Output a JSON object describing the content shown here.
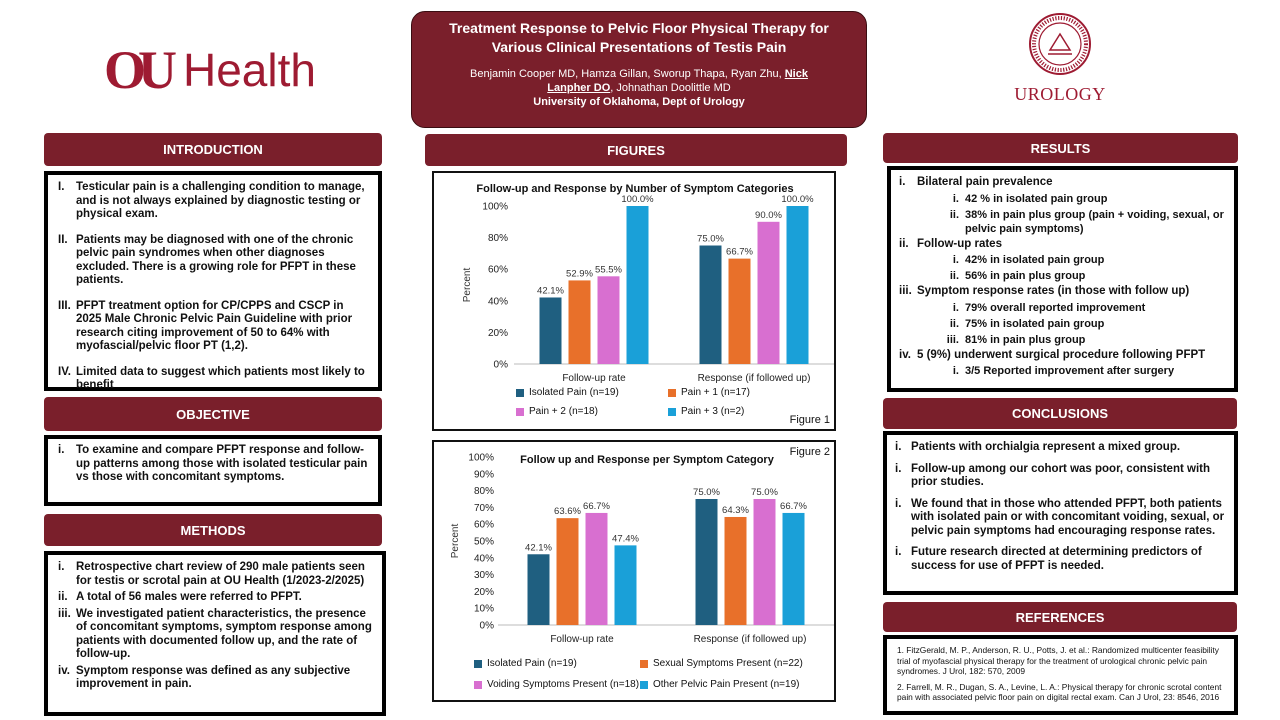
{
  "logo_left": {
    "monogram": "OU",
    "text": "Health"
  },
  "logo_right": {
    "seal_text": "THE UNIVERSITY OF OKLAHOMA · 1890",
    "text": "UROLOGY"
  },
  "title": {
    "line1": "Treatment Response to Pelvic Floor Physical Therapy for",
    "line2": "Various Clinical Presentations of Testis Pain",
    "authors_a": "Benjamin Cooper MD, Hamza Gillan, Sworup Thapa, Ryan Zhu, ",
    "authors_u1": "Nick",
    "authors_u2": "Lanpher DO",
    "authors_b": ", Johnathan Doolittle MD",
    "affiliation": "University of Oklahoma, Dept of Urology"
  },
  "sections": {
    "introduction": "INTRODUCTION",
    "objective": "OBJECTIVE",
    "methods": "METHODS",
    "figures": "FIGURES",
    "results": "RESULTS",
    "conclusions": "CONCLUSIONS",
    "references": "REFERENCES"
  },
  "introduction": [
    {
      "n": "I.",
      "text": "Testicular pain is a challenging condition to manage, and is not always explained by diagnostic testing or physical exam."
    },
    {
      "n": "II.",
      "text": "Patients may be diagnosed with one of the chronic pelvic pain syndromes when other diagnoses excluded. There is a growing role for PFPT in these patients."
    },
    {
      "n": "III.",
      "text": "PFPT treatment option for CP/CPPS and CSCP in 2025 Male Chronic Pelvic Pain Guideline with prior research citing improvement of 50 to 64% with myofascial/pelvic floor PT (1,2)."
    },
    {
      "n": "IV.",
      "text": "Limited data to suggest which patients most likely to benefit"
    }
  ],
  "objective": [
    {
      "n": "i.",
      "text": "To examine and compare PFPT response and follow-up patterns among those with isolated testicular pain vs those with concomitant symptoms."
    }
  ],
  "methods": [
    {
      "n": "i.",
      "text": "Retrospective chart review of 290 male patients seen for testis or scrotal pain at OU Health (1/2023-2/2025)"
    },
    {
      "n": "ii.",
      "text": "A total of 56 males were referred to PFPT."
    },
    {
      "n": "iii.",
      "text": "We investigated patient characteristics, the presence of concomitant symptoms, symptom response among patients with documented follow up, and the rate of follow-up."
    },
    {
      "n": "iv.",
      "text": "Symptom response was defined as any subjective improvement in pain."
    }
  ],
  "results": [
    {
      "n": "i.",
      "text": "Bilateral pain prevalence",
      "subs": [
        {
          "n": "i.",
          "text": "42 % in isolated pain group"
        },
        {
          "n": "ii.",
          "text": "38% in pain plus group (pain + voiding, sexual, or pelvic pain symptoms)"
        }
      ]
    },
    {
      "n": "ii.",
      "text": "Follow-up rates",
      "subs": [
        {
          "n": "i.",
          "text": "42% in isolated pain group"
        },
        {
          "n": "ii.",
          "text": "56% in pain plus group"
        }
      ]
    },
    {
      "n": "iii.",
      "text": "Symptom response rates  (in those with follow up)",
      "subs": [
        {
          "n": "i.",
          "text": "79% overall reported improvement"
        },
        {
          "n": "ii.",
          "text": "75% in isolated pain group"
        },
        {
          "n": "iii.",
          "text": "81% in pain plus group"
        }
      ]
    },
    {
      "n": "iv.",
      "text": "5 (9%) underwent surgical procedure following PFPT",
      "subs": [
        {
          "n": "i.",
          "text": "3/5 Reported improvement after surgery"
        }
      ]
    }
  ],
  "conclusions": [
    {
      "n": "i.",
      "text": "Patients with orchialgia represent a mixed group."
    },
    {
      "n": "i.",
      "text": "Follow-up among our cohort was poor, consistent with prior studies."
    },
    {
      "n": "i.",
      "text": "We found that in those who attended PFPT, both patients with isolated pain or with concomitant voiding, sexual, or pelvic pain symptoms had encouraging response rates."
    },
    {
      "n": "i.",
      "text": "Future research directed at determining predictors of success for use of PFPT is needed."
    }
  ],
  "references": [
    "1.  FitzGerald, M. P., Anderson, R. U., Potts, J. et al.: Randomized multicenter feasibility trial of myofascial physical therapy for the treatment of urological chronic pelvic pain syndromes. J Urol, 182: 570, 2009",
    "2.  Farrell, M. R., Dugan, S. A., Levine, L. A.: Physical therapy for chronic scrotal content pain with associated pelvic floor pain on digital rectal exam. Can J Urol, 23: 8546, 2016"
  ],
  "chart_data": [
    {
      "type": "bar",
      "figure_label": "Figure 1",
      "title": "Follow-up and Response by Number of Symptom Categories",
      "ylabel": "Percent",
      "ylim": [
        0,
        100
      ],
      "yticks": [
        "0%",
        "20%",
        "40%",
        "60%",
        "80%",
        "100%"
      ],
      "categories": [
        "Follow-up rate",
        "Response (if followed up)"
      ],
      "series": [
        {
          "name": "Isolated Pain (n=19)",
          "color": "#1f5f80",
          "values": [
            42.1,
            75.0
          ],
          "labels": [
            "42.1%",
            "75.0%"
          ]
        },
        {
          "name": "Pain + 1 (n=17)",
          "color": "#e8702a",
          "values": [
            52.9,
            66.7
          ],
          "labels": [
            "52.9%",
            "66.7%"
          ]
        },
        {
          "name": "Pain + 2 (n=18)",
          "color": "#d86fd0",
          "values": [
            55.5,
            90.0
          ],
          "labels": [
            "55.5%",
            "90.0%"
          ]
        },
        {
          "name": "Pain + 3 (n=2)",
          "color": "#1aa0d8",
          "values": [
            100.0,
            100.0
          ],
          "labels": [
            "100.0%",
            "100.0%"
          ]
        }
      ]
    },
    {
      "type": "bar",
      "figure_label": "Figure 2",
      "title": "Follow up and Response per Symptom Category",
      "ylabel": "Percent",
      "ylim": [
        0,
        100
      ],
      "yticks": [
        "0%",
        "10%",
        "20%",
        "30%",
        "40%",
        "50%",
        "60%",
        "70%",
        "80%",
        "90%",
        "100%"
      ],
      "categories": [
        "Follow-up rate",
        "Response (if followed up)"
      ],
      "series": [
        {
          "name": "Isolated Pain (n=19)",
          "color": "#1f5f80",
          "values": [
            42.1,
            75.0
          ],
          "labels": [
            "42.1%",
            "75.0%"
          ]
        },
        {
          "name": "Sexual Symptoms Present (n=22)",
          "color": "#e8702a",
          "values": [
            63.6,
            64.3
          ],
          "labels": [
            "63.6%",
            "64.3%"
          ]
        },
        {
          "name": "Voiding Symptoms Present (n=18)",
          "color": "#d86fd0",
          "values": [
            66.7,
            75.0
          ],
          "labels": [
            "66.7%",
            "75.0%"
          ]
        },
        {
          "name": "Other Pelvic Pain Present (n=19)",
          "color": "#1aa0d8",
          "values": [
            47.4,
            66.7
          ],
          "labels": [
            "47.4%",
            "66.7%"
          ]
        }
      ]
    }
  ]
}
